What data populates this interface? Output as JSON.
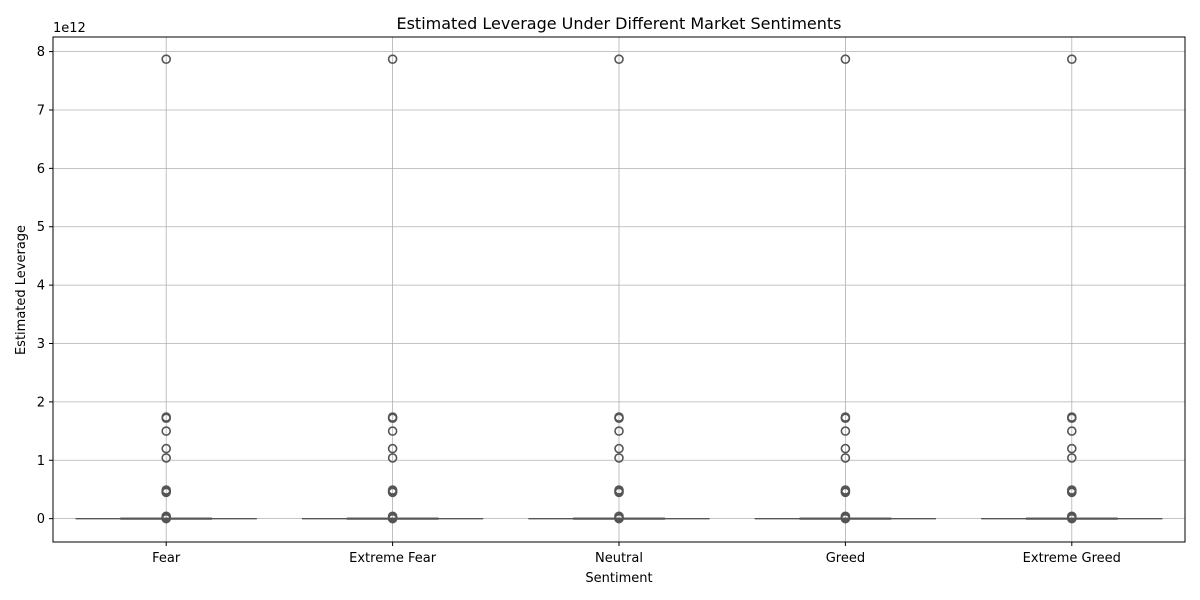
{
  "chart_data": {
    "type": "box",
    "title": "Estimated Leverage Under Different Market Sentiments",
    "xlabel": "Sentiment",
    "ylabel": "Estimated Leverage",
    "offset_text": "1e12",
    "categories": [
      "Fear",
      "Extreme Fear",
      "Neutral",
      "Greed",
      "Extreme Greed"
    ],
    "ylim": [
      -0.4,
      8.25
    ],
    "yticks": [
      0,
      1,
      2,
      3,
      4,
      5,
      6,
      7,
      8
    ],
    "grid": true,
    "scale_exponent": 12,
    "boxes": [
      {
        "category": "Fear",
        "q1": 0,
        "median": 0,
        "q3": 0,
        "whisker_low": 0,
        "whisker_high": 0,
        "outliers": [
          0.0,
          0.02,
          0.04,
          0.45,
          0.47,
          0.49,
          1.04,
          1.2,
          1.5,
          1.72,
          1.74,
          7.87
        ]
      },
      {
        "category": "Extreme Fear",
        "q1": 0,
        "median": 0,
        "q3": 0,
        "whisker_low": 0,
        "whisker_high": 0,
        "outliers": [
          0.0,
          0.02,
          0.04,
          0.45,
          0.47,
          0.49,
          1.04,
          1.2,
          1.5,
          1.72,
          1.74,
          7.87
        ]
      },
      {
        "category": "Neutral",
        "q1": 0,
        "median": 0,
        "q3": 0,
        "whisker_low": 0,
        "whisker_high": 0,
        "outliers": [
          0.0,
          0.02,
          0.04,
          0.45,
          0.47,
          0.49,
          1.04,
          1.2,
          1.5,
          1.72,
          1.74,
          7.87
        ]
      },
      {
        "category": "Greed",
        "q1": 0,
        "median": 0,
        "q3": 0,
        "whisker_low": 0,
        "whisker_high": 0,
        "outliers": [
          0.0,
          0.02,
          0.04,
          0.45,
          0.47,
          0.49,
          1.04,
          1.2,
          1.5,
          1.72,
          1.74,
          7.87
        ]
      },
      {
        "category": "Extreme Greed",
        "q1": 0,
        "median": 0,
        "q3": 0,
        "whisker_low": 0,
        "whisker_high": 0,
        "outliers": [
          0.0,
          0.02,
          0.04,
          0.45,
          0.47,
          0.49,
          1.04,
          1.2,
          1.5,
          1.72,
          1.74,
          7.87
        ]
      }
    ],
    "colors": {
      "box_edge": "#555555",
      "outlier_edge": "#555555",
      "grid": "#b0b0b0",
      "axis": "#000000"
    }
  }
}
